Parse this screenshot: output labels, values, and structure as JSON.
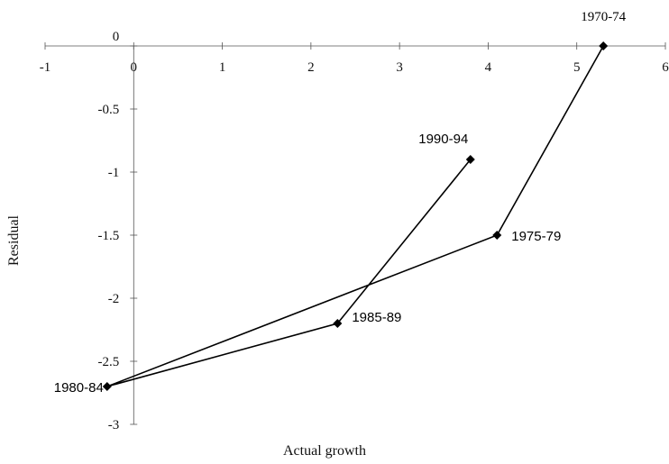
{
  "chart_data": {
    "type": "line",
    "xlabel": "Actual growth",
    "ylabel": "Residual",
    "xlim": [
      -1,
      6
    ],
    "ylim": [
      -3,
      0
    ],
    "x_ticks": [
      "-1",
      "0",
      "1",
      "2",
      "3",
      "4",
      "5",
      "6"
    ],
    "y_ticks": [
      "0",
      "-0.5",
      "-1",
      "-1.5",
      "-2",
      "-2.5",
      "-3"
    ],
    "grid": false,
    "legend": "none",
    "line_color": "#000000",
    "points": [
      {
        "label": "1970-74",
        "x": 5.3,
        "y": 0.0
      },
      {
        "label": "1975-79",
        "x": 4.1,
        "y": -1.5
      },
      {
        "label": "1980-84",
        "x": -0.3,
        "y": -2.7
      },
      {
        "label": "1985-89",
        "x": 2.3,
        "y": -2.2
      },
      {
        "label": "1990-94",
        "x": 3.8,
        "y": -0.9
      }
    ]
  }
}
